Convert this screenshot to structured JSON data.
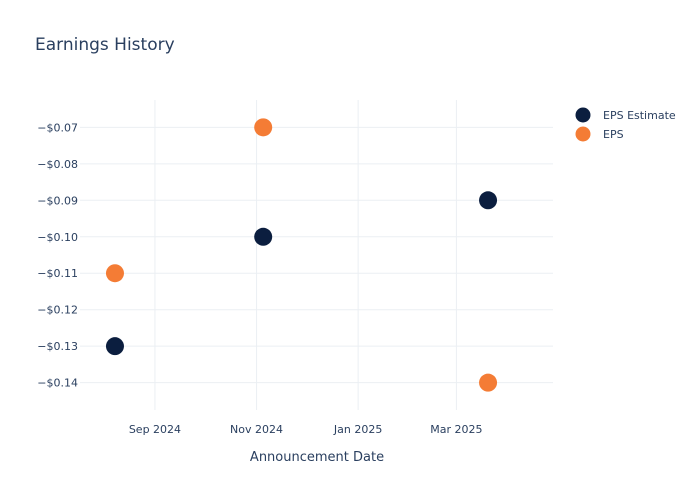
{
  "chart_data": {
    "type": "scatter",
    "title": "Earnings History",
    "xlabel": "Announcement Date",
    "ylabel": "",
    "x_ticks": [
      {
        "date": "2024-09-01",
        "label": "Sep 2024"
      },
      {
        "date": "2024-11-01",
        "label": "Nov 2024"
      },
      {
        "date": "2025-01-01",
        "label": "Jan 2025"
      },
      {
        "date": "2025-03-01",
        "label": "Mar 2025"
      }
    ],
    "xlim": [
      "2024-07-18",
      "2025-04-28"
    ],
    "y_ticks": [
      -0.07,
      -0.08,
      -0.09,
      -0.1,
      -0.11,
      -0.12,
      -0.13,
      -0.14
    ],
    "y_tick_labels": [
      "−$0.07",
      "−$0.08",
      "−$0.09",
      "−$0.10",
      "−$0.11",
      "−$0.12",
      "−$0.13",
      "−$0.14"
    ],
    "ylim": [
      -0.1475,
      -0.0625
    ],
    "grid": true,
    "legend_position": "top-right",
    "series": [
      {
        "name": "EPS Estimate",
        "color": "#0b1e3f",
        "points": [
          {
            "x": "2024-08-08",
            "y": -0.13
          },
          {
            "x": "2024-11-05",
            "y": -0.1
          },
          {
            "x": "2025-03-20",
            "y": -0.09
          }
        ]
      },
      {
        "name": "EPS",
        "color": "#f47c35",
        "points": [
          {
            "x": "2024-08-08",
            "y": -0.11
          },
          {
            "x": "2024-11-05",
            "y": -0.07
          },
          {
            "x": "2025-03-20",
            "y": -0.14
          }
        ]
      }
    ]
  }
}
